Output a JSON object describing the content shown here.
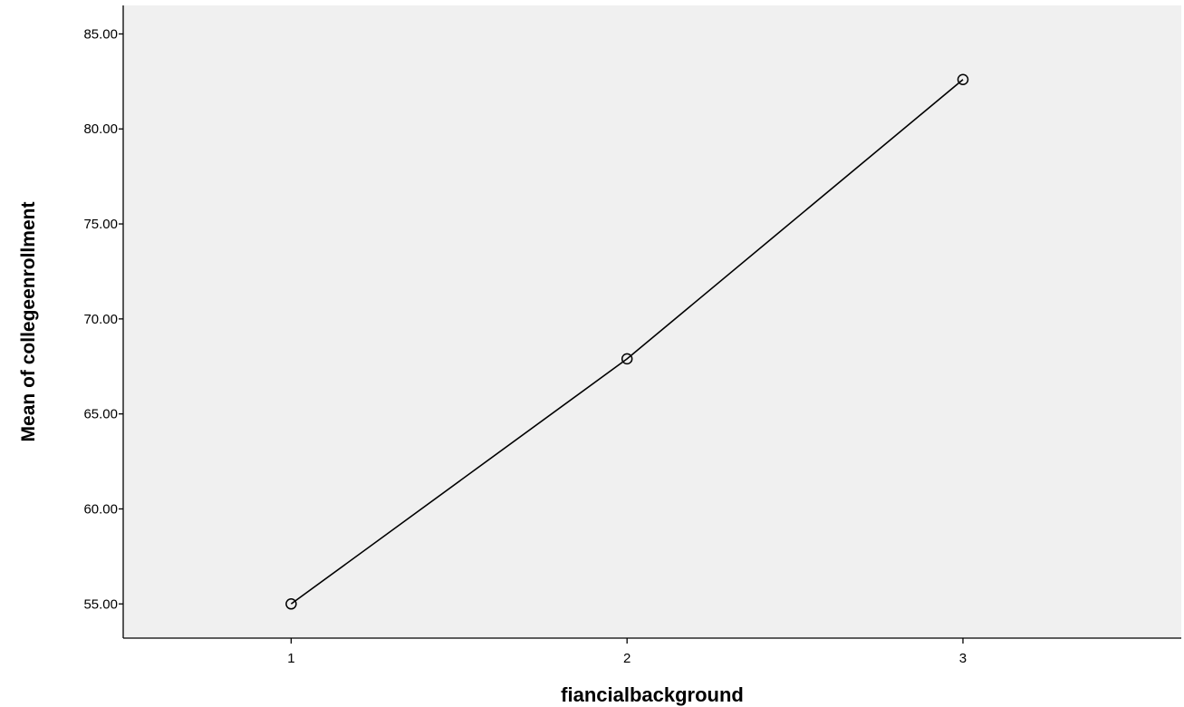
{
  "chart_data": {
    "type": "line",
    "title": "",
    "xlabel": "fiancialbackground",
    "ylabel": "Mean of collegeenrollment",
    "x": [
      1,
      2,
      3
    ],
    "xtick_labels": [
      "1",
      "2",
      "3"
    ],
    "xlim": [
      0.5,
      3.65
    ],
    "ylim": [
      53.2,
      86.5
    ],
    "yticks": [
      55,
      60,
      65,
      70,
      75,
      80,
      85
    ],
    "ytick_labels": [
      "55.00",
      "60.00",
      "65.00",
      "70.00",
      "75.00",
      "80.00",
      "85.00"
    ],
    "series": [
      {
        "values": [
          55.0,
          67.9,
          82.6
        ]
      }
    ],
    "marker": "open-circle",
    "grid": false,
    "legend": "none",
    "colors": {
      "plot_background": "#f0f0f0",
      "line": "#000000",
      "axis": "#000000"
    }
  }
}
